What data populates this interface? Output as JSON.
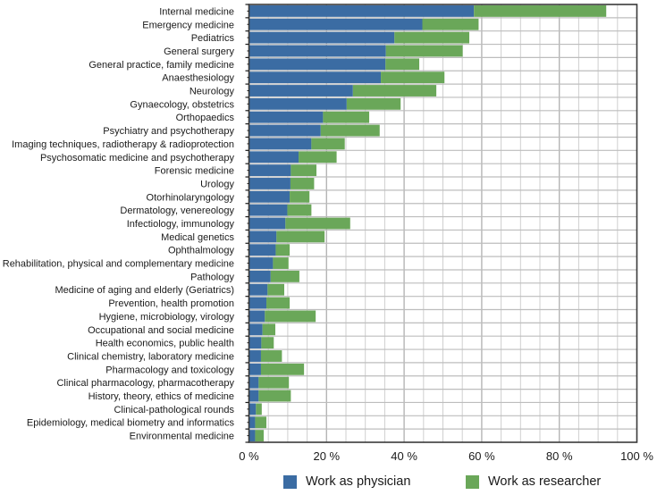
{
  "chart_data": {
    "type": "bar",
    "orientation": "horizontal",
    "stacked": true,
    "title": "",
    "xlabel": "",
    "ylabel": "",
    "xlim": [
      0,
      100
    ],
    "x_ticks": [
      "0 %",
      "20 %",
      "40 %",
      "60 %",
      "80 %",
      "100 %"
    ],
    "grid": true,
    "legend_position": "bottom",
    "categories": [
      "Internal medicine",
      "Emergency medicine",
      "Pediatrics",
      "General surgery",
      "General practice, family medicine",
      "Anaesthesiology",
      "Neurology",
      "Gynaecology, obstetrics",
      "Orthopaedics",
      "Psychiatry and psychotherapy",
      "Imaging techniques, radiotherapy & radioprotection",
      "Psychosomatic medicine and psychotherapy",
      "Forensic medicine",
      "Urology",
      "Otorhinolaryngology",
      "Dermatology, venereology",
      "Infectiology, immunology",
      "Medical genetics",
      "Ophthalmology",
      "Rehabilitation, physical and complementary medicine",
      "Pathology",
      "Medicine of aging and elderly (Geriatrics)",
      "Prevention, health promotion",
      "Hygiene, microbiology, virology",
      "Occupational and social medicine",
      "Health economics, public health",
      "Clinical chemistry, laboratory medicine",
      "Pharmacology and toxicology",
      "Clinical pharmacology, pharmacotherapy",
      "History, theory, ethics of medicine",
      "Clinical-pathological rounds",
      "Epidemiology, medical biometry and informatics",
      "Environmental medicine"
    ],
    "series": [
      {
        "name": "Work as physician",
        "color": "#3b6ca3",
        "values": [
          58.0,
          44.7,
          37.5,
          35.3,
          35.2,
          34.0,
          26.8,
          25.2,
          19.1,
          18.5,
          16.1,
          12.8,
          10.8,
          10.7,
          10.5,
          9.9,
          9.4,
          7.1,
          6.9,
          6.2,
          5.6,
          4.8,
          4.5,
          4.1,
          3.5,
          3.2,
          3.1,
          3.1,
          2.5,
          2.5,
          1.8,
          1.6,
          1.6
        ]
      },
      {
        "name": "Work as researcher",
        "color": "#6aa759",
        "values": [
          34.1,
          14.5,
          19.3,
          19.8,
          8.7,
          16.4,
          21.5,
          13.9,
          11.9,
          15.2,
          8.6,
          9.8,
          6.6,
          6.1,
          5.1,
          6.2,
          16.7,
          12.4,
          3.6,
          4.0,
          7.4,
          4.3,
          6.0,
          13.1,
          3.3,
          3.2,
          5.4,
          11.1,
          7.8,
          8.3,
          1.5,
          2.9,
          2.2
        ]
      }
    ]
  }
}
